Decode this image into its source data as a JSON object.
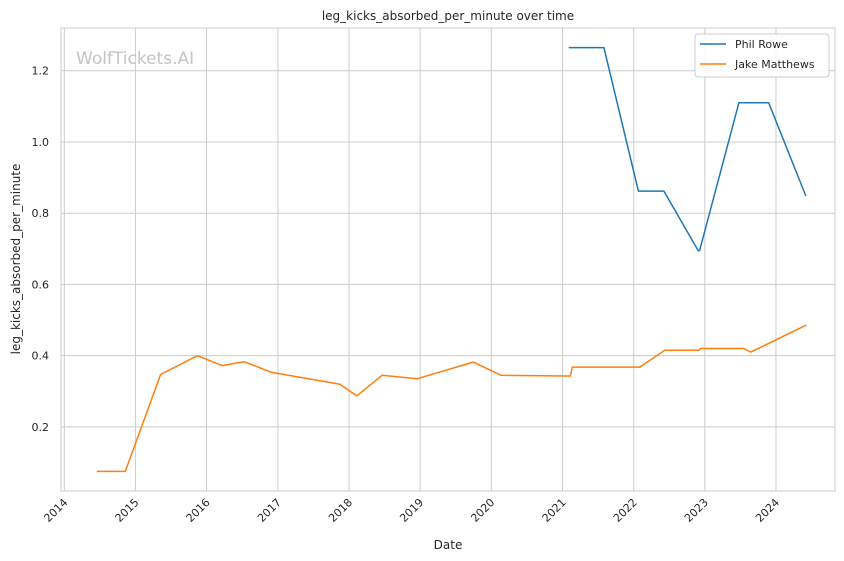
{
  "chart_data": {
    "type": "line",
    "title": "leg_kicks_absorbed_per_minute over time",
    "xlabel": "Date",
    "ylabel": "leg_kicks_absorbed_per_minute",
    "watermark": "WolfTickets.AI",
    "x_ticks": [
      "2014",
      "2015",
      "2016",
      "2017",
      "2018",
      "2019",
      "2020",
      "2021",
      "2022",
      "2023",
      "2024"
    ],
    "y_ticks": [
      "0.2",
      "0.4",
      "0.6",
      "0.8",
      "1.0",
      "1.2"
    ],
    "xlim": [
      "2013-12-15",
      "2024-10-30"
    ],
    "ylim": [
      0.02,
      1.32
    ],
    "grid": true,
    "legend_position": "top-right",
    "series": [
      {
        "name": "Phil Rowe",
        "color": "#1f77b4",
        "points": [
          [
            "2021-02-05",
            1.265
          ],
          [
            "2021-08-01",
            1.265
          ],
          [
            "2022-01-25",
            0.862
          ],
          [
            "2022-06-05",
            0.862
          ],
          [
            "2022-11-28",
            0.695
          ],
          [
            "2022-12-05",
            0.695
          ],
          [
            "2023-06-25",
            1.11
          ],
          [
            "2023-11-25",
            1.11
          ],
          [
            "2024-06-01",
            0.85
          ]
        ]
      },
      {
        "name": "Jake Matthews",
        "color": "#ff7f0e",
        "points": [
          [
            "2014-06-20",
            0.075
          ],
          [
            "2014-11-10",
            0.075
          ],
          [
            "2015-05-10",
            0.347
          ],
          [
            "2015-11-15",
            0.4
          ],
          [
            "2016-03-20",
            0.372
          ],
          [
            "2016-07-10",
            0.383
          ],
          [
            "2016-12-01",
            0.353
          ],
          [
            "2017-11-15",
            0.32
          ],
          [
            "2018-02-10",
            0.287
          ],
          [
            "2018-06-20",
            0.345
          ],
          [
            "2018-12-15",
            0.335
          ],
          [
            "2019-10-01",
            0.382
          ],
          [
            "2020-02-20",
            0.345
          ],
          [
            "2021-01-10",
            0.343
          ],
          [
            "2021-02-10",
            0.343
          ],
          [
            "2021-02-20",
            0.368
          ],
          [
            "2022-02-01",
            0.368
          ],
          [
            "2022-06-10",
            0.415
          ],
          [
            "2022-12-01",
            0.415
          ],
          [
            "2022-12-10",
            0.42
          ],
          [
            "2023-07-20",
            0.42
          ],
          [
            "2023-08-25",
            0.41
          ],
          [
            "2024-06-01",
            0.485
          ]
        ]
      }
    ]
  }
}
